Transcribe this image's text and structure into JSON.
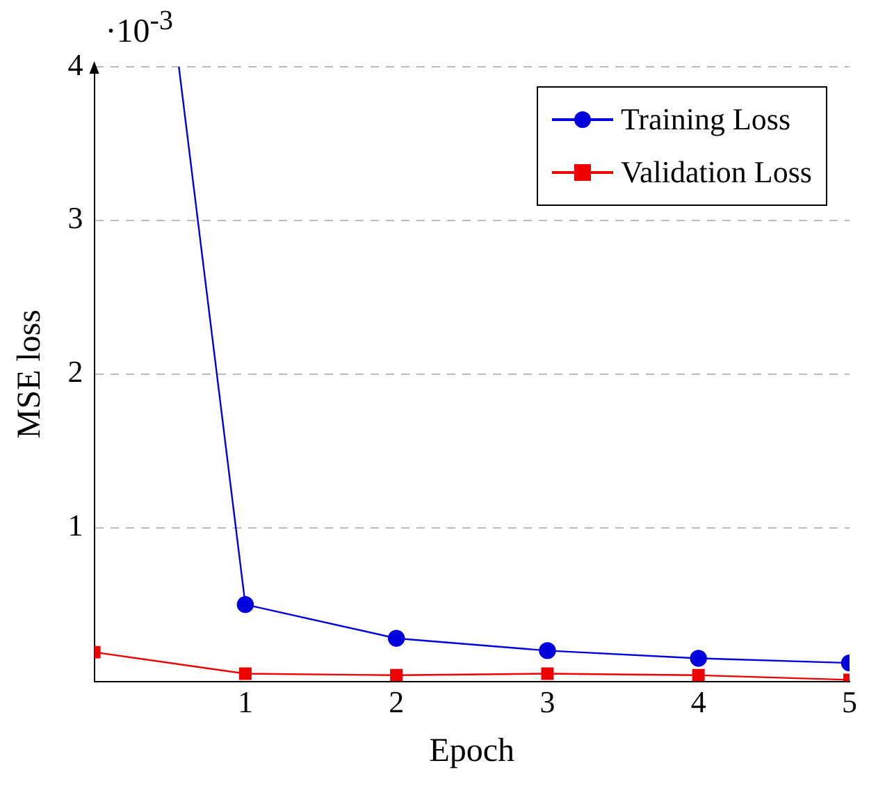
{
  "chart_data": {
    "type": "line",
    "xlabel": "Epoch",
    "ylabel": "MSE loss",
    "annotations": [
      "·10$^{-3}$"
    ],
    "x": [
      0,
      1,
      2,
      3,
      4,
      5
    ],
    "series": [
      {
        "name": "Training Loss",
        "color": "#0000dd",
        "marker": "circle",
        "values": [
          null,
          0.5,
          0.28,
          0.2,
          0.15,
          0.12
        ]
      },
      {
        "color": "#0000dd",
        "marker": "none",
        "x": [
          0.56,
          1
        ],
        "values": [
          4,
          0.5
        ]
      },
      {
        "name": "Validation Loss",
        "color": "#ee0000",
        "marker": "square",
        "values": [
          0.19,
          0.05,
          0.04,
          0.05,
          0.04,
          0.01
        ]
      }
    ],
    "xlim": [
      0,
      5
    ],
    "xticks": [
      1,
      2,
      3,
      4,
      5
    ],
    "ylim": [
      0,
      4
    ],
    "yticks": [
      1,
      2,
      3,
      4
    ],
    "grid": "y",
    "legend": "top right"
  }
}
